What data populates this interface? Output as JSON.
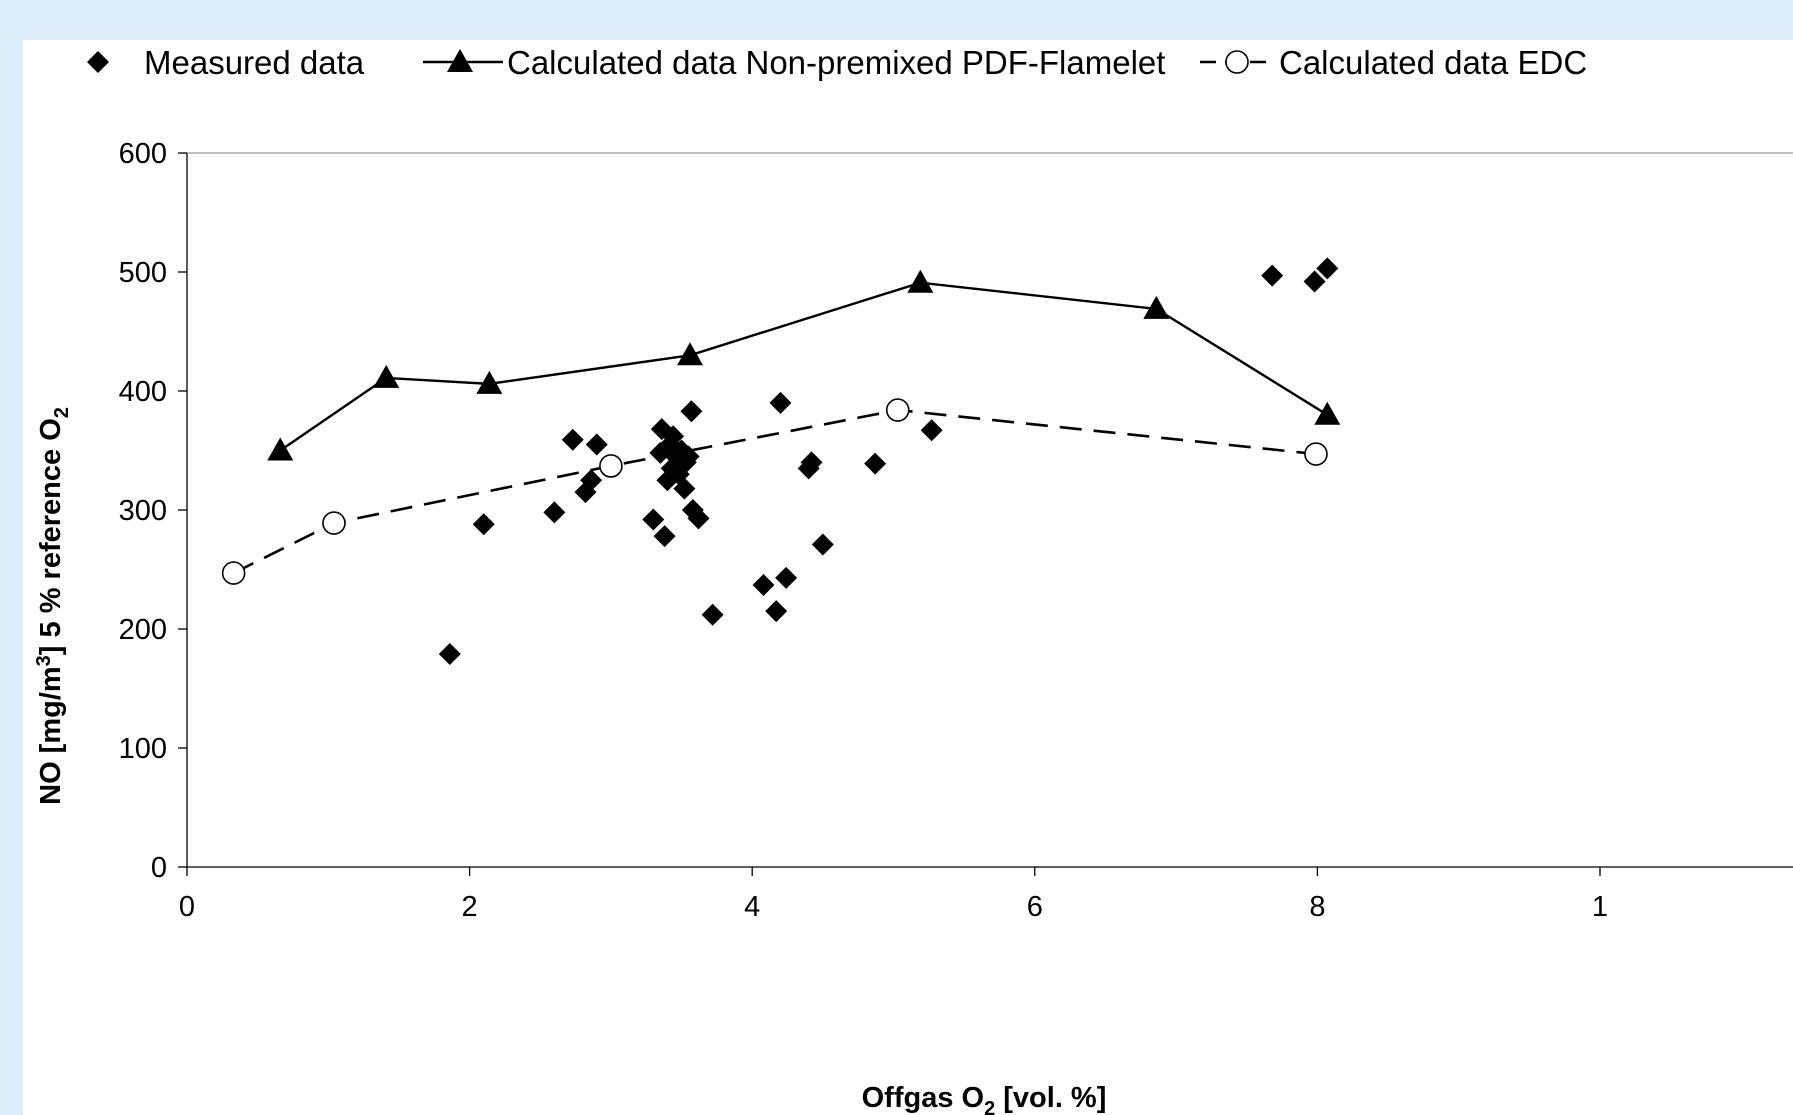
{
  "chart_data": {
    "type": "scatter",
    "xlabel": "Offgas O",
    "xlabel_sub": "2",
    "xlabel_tail": " [vol. %]",
    "ylabel": "NO [mg/m",
    "ylabel_sup": "3",
    "ylabel_mid": "] 5 % reference O",
    "ylabel_sub": "2",
    "xlim": [
      0,
      10
    ],
    "ylim": [
      0,
      600
    ],
    "x_ticks": [
      "0",
      "2",
      "4",
      "6",
      "8",
      "1"
    ],
    "y_ticks": [
      "0",
      "100",
      "200",
      "300",
      "400",
      "500",
      "600"
    ],
    "grid": false,
    "legend_position": "top",
    "series": [
      {
        "name": "Measured data",
        "style": "markers",
        "marker": "diamond",
        "color": "#000000",
        "points": [
          [
            1.86,
            179
          ],
          [
            2.1,
            288
          ],
          [
            2.6,
            298
          ],
          [
            2.73,
            359
          ],
          [
            2.82,
            315
          ],
          [
            2.86,
            325
          ],
          [
            2.9,
            355
          ],
          [
            3.3,
            292
          ],
          [
            3.35,
            348
          ],
          [
            3.38,
            278
          ],
          [
            3.36,
            368
          ],
          [
            3.4,
            325
          ],
          [
            3.42,
            355
          ],
          [
            3.43,
            335
          ],
          [
            3.44,
            362
          ],
          [
            3.46,
            345
          ],
          [
            3.48,
            330
          ],
          [
            3.5,
            350
          ],
          [
            3.52,
            318
          ],
          [
            3.53,
            340
          ],
          [
            3.55,
            345
          ],
          [
            3.57,
            383
          ],
          [
            3.58,
            300
          ],
          [
            3.62,
            293
          ],
          [
            3.72,
            212
          ],
          [
            4.08,
            237
          ],
          [
            4.17,
            215
          ],
          [
            4.2,
            390
          ],
          [
            4.24,
            243
          ],
          [
            4.4,
            335
          ],
          [
            4.42,
            340
          ],
          [
            4.5,
            271
          ],
          [
            4.87,
            339
          ],
          [
            5.27,
            367
          ],
          [
            7.68,
            497
          ],
          [
            7.98,
            492
          ],
          [
            8.07,
            503
          ]
        ]
      },
      {
        "name": "Calculated data Non-premixed PDF-Flamelet",
        "style": "line-markers",
        "marker": "triangle",
        "dash": "solid",
        "color": "#000000",
        "points": [
          [
            0.66,
            350
          ],
          [
            1.41,
            411
          ],
          [
            2.14,
            406
          ],
          [
            3.56,
            430
          ],
          [
            5.19,
            491
          ],
          [
            6.86,
            469
          ],
          [
            8.07,
            380
          ]
        ]
      },
      {
        "name": "Calculated data EDC",
        "style": "line-markers",
        "marker": "circle-open",
        "dash": "dashed",
        "color": "#000000",
        "points": [
          [
            0.33,
            247
          ],
          [
            1.04,
            289
          ],
          [
            3.0,
            337
          ],
          [
            5.03,
            384
          ],
          [
            7.99,
            347
          ]
        ]
      }
    ]
  }
}
